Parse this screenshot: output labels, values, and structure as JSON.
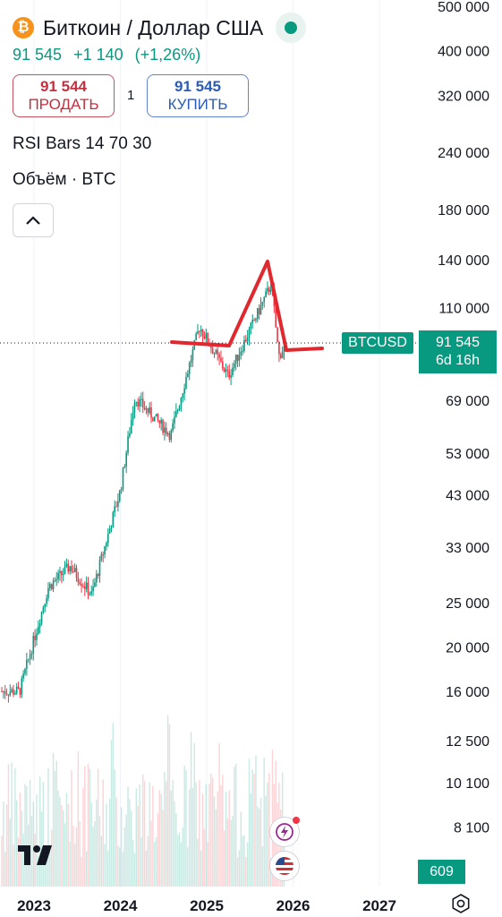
{
  "header": {
    "icon": "bitcoin-icon",
    "title": "Биткоин / Доллар США",
    "status_icon": "market-open-dot-icon",
    "last_price": "91 545",
    "change_abs": "+1 140",
    "change_pct": "(+1,26%)"
  },
  "trade": {
    "sell_price": "91 544",
    "sell_label": "ПРОДАТЬ",
    "spread": "1",
    "buy_price": "91 545",
    "buy_label": "КУПИТЬ"
  },
  "indicators": {
    "rsi_label": "RSI Bars 14 70 30",
    "volume_label": "Объём · BTC"
  },
  "price_tag": {
    "symbol": "BTCUSD",
    "price": "91 545",
    "countdown": "6d 16h"
  },
  "volume_tag": "609",
  "colors": {
    "up": "#089981",
    "down": "#f23645",
    "drawing": "#e0282e",
    "sell": "#c4303f",
    "buy": "#2a5bb6"
  },
  "chart_data": {
    "type": "candlestick",
    "scale": "log",
    "y_ticks": [
      "500 000",
      "400 000",
      "320 000",
      "240 000",
      "180 000",
      "140 000",
      "110 000",
      "69 000",
      "53 000",
      "43 000",
      "33 000",
      "25 000",
      "20 000",
      "16 000",
      "12 500",
      "10 100",
      "8 100"
    ],
    "x_ticks": [
      "2023",
      "2024",
      "2025",
      "2026",
      "2027"
    ],
    "last_price": 91545,
    "approx_path": [
      {
        "date": "2022-11",
        "price": 16000
      },
      {
        "date": "2023-03",
        "price": 27000
      },
      {
        "date": "2023-06",
        "price": 30000
      },
      {
        "date": "2023-09",
        "price": 26000
      },
      {
        "date": "2024-01",
        "price": 44000
      },
      {
        "date": "2024-03",
        "price": 70000
      },
      {
        "date": "2024-08",
        "price": 58000
      },
      {
        "date": "2024-12",
        "price": 100000
      },
      {
        "date": "2025-04",
        "price": 78000
      },
      {
        "date": "2025-10",
        "price": 124000
      },
      {
        "date": "2025-11",
        "price": 86000
      },
      {
        "date": "2025-12",
        "price": 91545
      }
    ],
    "drawing": "hand-drawn red line: horizontal, up to peak, down, horizontal"
  }
}
